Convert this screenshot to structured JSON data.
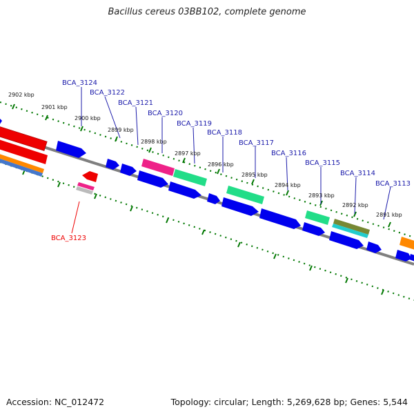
{
  "title": "Bacillus cereus 03BB102, complete genome",
  "footer": {
    "accession": "Accession: NC_012472",
    "stats": "Topology: circular; Length: 5,269,628 bp; Genes: 5,544"
  },
  "colors": {
    "backbone": "#7f7f7f",
    "gene_blue": "#0000ee",
    "ticks": "#007700",
    "gene_label": "#1a1aaa",
    "gene_label_highlight": "#ee0000"
  },
  "kbp_labels": [
    "2902 kbp",
    "2901 kbp",
    "2900 kbp",
    "2899 kbp",
    "2898 kbp",
    "2897 kbp",
    "2896 kbp",
    "2895 kbp",
    "2894 kbp",
    "2893 kbp",
    "2892 kbp",
    "2891 kbp"
  ],
  "gene_labels": [
    "BCA_3124",
    "BCA_3122",
    "BCA_3121",
    "BCA_3120",
    "BCA_3119",
    "BCA_3118",
    "BCA_3117",
    "BCA_3116",
    "BCA_3115",
    "BCA_3114",
    "BCA_3113",
    "BCA_3123"
  ]
}
